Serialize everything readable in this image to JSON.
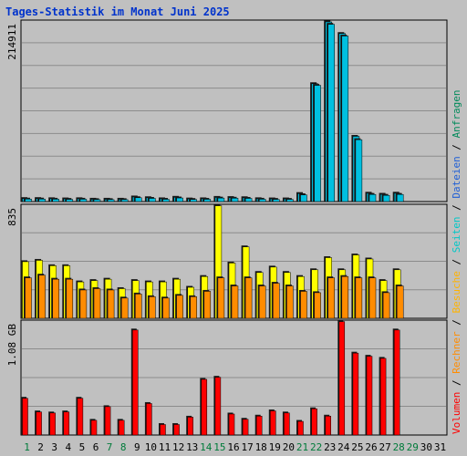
{
  "chart_data": {
    "type": "bar",
    "title": "Tages-Statistik im Monat Juni 2025",
    "colors": {
      "background": "#c0c0c0",
      "plot_bg": "#c0c0c0",
      "grid": "#8c8c8c",
      "title": "#0033cc",
      "weekday_label": "#000000",
      "weekend_label": "#007b3a",
      "anfragen": "#00c7d8",
      "dateien": "#00a6c8",
      "seiten": "#00b2d3",
      "besuche": "#ffff00",
      "rechner": "#ff8c00",
      "volumen": "#ff0000"
    },
    "days": [
      "1",
      "2",
      "3",
      "4",
      "5",
      "6",
      "7",
      "8",
      "9",
      "10",
      "11",
      "12",
      "13",
      "14",
      "15",
      "16",
      "17",
      "18",
      "19",
      "20",
      "21",
      "22",
      "23",
      "24",
      "25",
      "26",
      "27",
      "28",
      "29",
      "30",
      "31"
    ],
    "weekend_days": [
      1,
      7,
      8,
      14,
      15,
      21,
      22,
      28,
      29
    ],
    "panels": [
      {
        "id": "hits",
        "ymax_label": "214911",
        "ymax": 214911,
        "series": [
          {
            "name": "Anfragen",
            "color": "#00b8d6",
            "values": [
              3600,
              3600,
              3400,
              3200,
              3400,
              2800,
              2800,
              2800,
              5500,
              4600,
              3300,
              5100,
              3100,
              3300,
              5000,
              4800,
              4600,
              3400,
              3200,
              3200,
              9600,
              141000,
              214911,
              201000,
              78000,
              10000,
              8700,
              10000,
              null,
              null,
              null
            ]
          },
          {
            "name": "Dateien",
            "color": "#00c0e0",
            "values": [
              3000,
              3000,
              2800,
              2600,
              2800,
              2300,
              2300,
              2300,
              4600,
              3800,
              2700,
              4300,
              2500,
              2700,
              4200,
              4000,
              3800,
              2800,
              2600,
              2600,
              8000,
              139000,
              212000,
              198000,
              74000,
              8500,
              7400,
              8500,
              null,
              null,
              null
            ]
          }
        ]
      },
      {
        "id": "visits",
        "ymax_label": "835",
        "ymax": 835,
        "series": [
          {
            "name": "Besuche",
            "color": "#ffff00",
            "values": [
              420,
              430,
              390,
              390,
              270,
              280,
              290,
              220,
              280,
              270,
              270,
              290,
              230,
              310,
              835,
              410,
              530,
              340,
              380,
              340,
              310,
              360,
              450,
              360,
              470,
              440,
              280,
              360,
              null,
              null,
              null
            ]
          },
          {
            "name": "Rechner",
            "color": "#ff8c00",
            "values": [
              300,
              320,
              290,
              290,
              210,
              220,
              210,
              150,
              180,
              160,
              150,
              170,
              160,
              200,
              300,
              240,
              300,
              240,
              260,
              240,
              200,
              190,
              300,
              310,
              300,
              300,
              190,
              240,
              null,
              null,
              null
            ]
          }
        ]
      },
      {
        "id": "volume",
        "ymax_label": "1.08 GB",
        "ymax": 1.08,
        "series": [
          {
            "name": "Volumen",
            "color": "#ff0000",
            "values": [
              0.35,
              0.22,
              0.21,
              0.22,
              0.35,
              0.14,
              0.27,
              0.14,
              1.0,
              0.3,
              0.1,
              0.1,
              0.17,
              0.53,
              0.55,
              0.2,
              0.15,
              0.18,
              0.23,
              0.21,
              0.13,
              0.25,
              0.18,
              1.08,
              0.78,
              0.75,
              0.73,
              1.0,
              null,
              null,
              null
            ]
          }
        ]
      }
    ],
    "legend": [
      {
        "label": "Volumen",
        "color": "#ff0000"
      },
      {
        "label": "Rechner",
        "color": "#ff8c00"
      },
      {
        "label": "Besuche",
        "color": "#ffb300"
      },
      {
        "label": "Seiten",
        "color": "#00c7c7"
      },
      {
        "label": "Dateien",
        "color": "#1f5fd6"
      },
      {
        "label": "Anfragen",
        "color": "#008a5a"
      }
    ],
    "legend_separator": " / ",
    "grid": true
  }
}
